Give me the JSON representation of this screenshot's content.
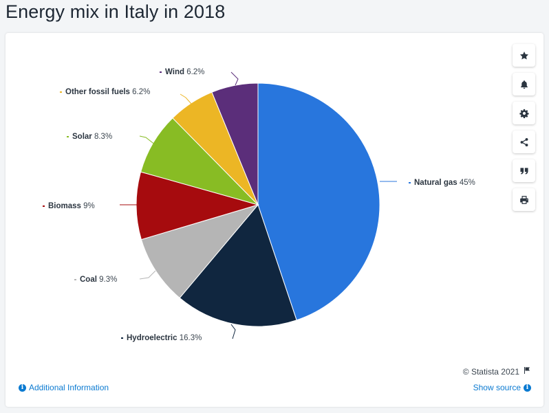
{
  "page": {
    "title": "Energy mix in Italy in 2018"
  },
  "toolbar": [
    {
      "name": "favorite-button",
      "icon": "star-icon"
    },
    {
      "name": "notification-button",
      "icon": "bell-icon"
    },
    {
      "name": "settings-button",
      "icon": "gear-icon"
    },
    {
      "name": "share-button",
      "icon": "share-icon"
    },
    {
      "name": "cite-button",
      "icon": "quote-icon"
    },
    {
      "name": "print-button",
      "icon": "printer-icon"
    }
  ],
  "footer": {
    "credit": "© Statista 2021",
    "additional_info": "Additional Information",
    "show_source": "Show source"
  },
  "chart_data": {
    "type": "pie",
    "slices": [
      {
        "label": "Natural gas",
        "value": 45,
        "display": "45%",
        "color": "#2876dd"
      },
      {
        "label": "Hydroelectric",
        "value": 16.3,
        "display": "16.3%",
        "color": "#10263f"
      },
      {
        "label": "Coal",
        "value": 9.3,
        "display": "9.3%",
        "color": "#b5b5b5"
      },
      {
        "label": "Biomass",
        "value": 9,
        "display": "9%",
        "color": "#a60b0e"
      },
      {
        "label": "Solar",
        "value": 8.3,
        "display": "8.3%",
        "color": "#88bc24"
      },
      {
        "label": "Other fossil fuels",
        "value": 6.2,
        "display": "6.2%",
        "color": "#ecb625"
      },
      {
        "label": "Wind",
        "value": 6.2,
        "display": "6.2%",
        "color": "#5b2e7a"
      }
    ]
  }
}
